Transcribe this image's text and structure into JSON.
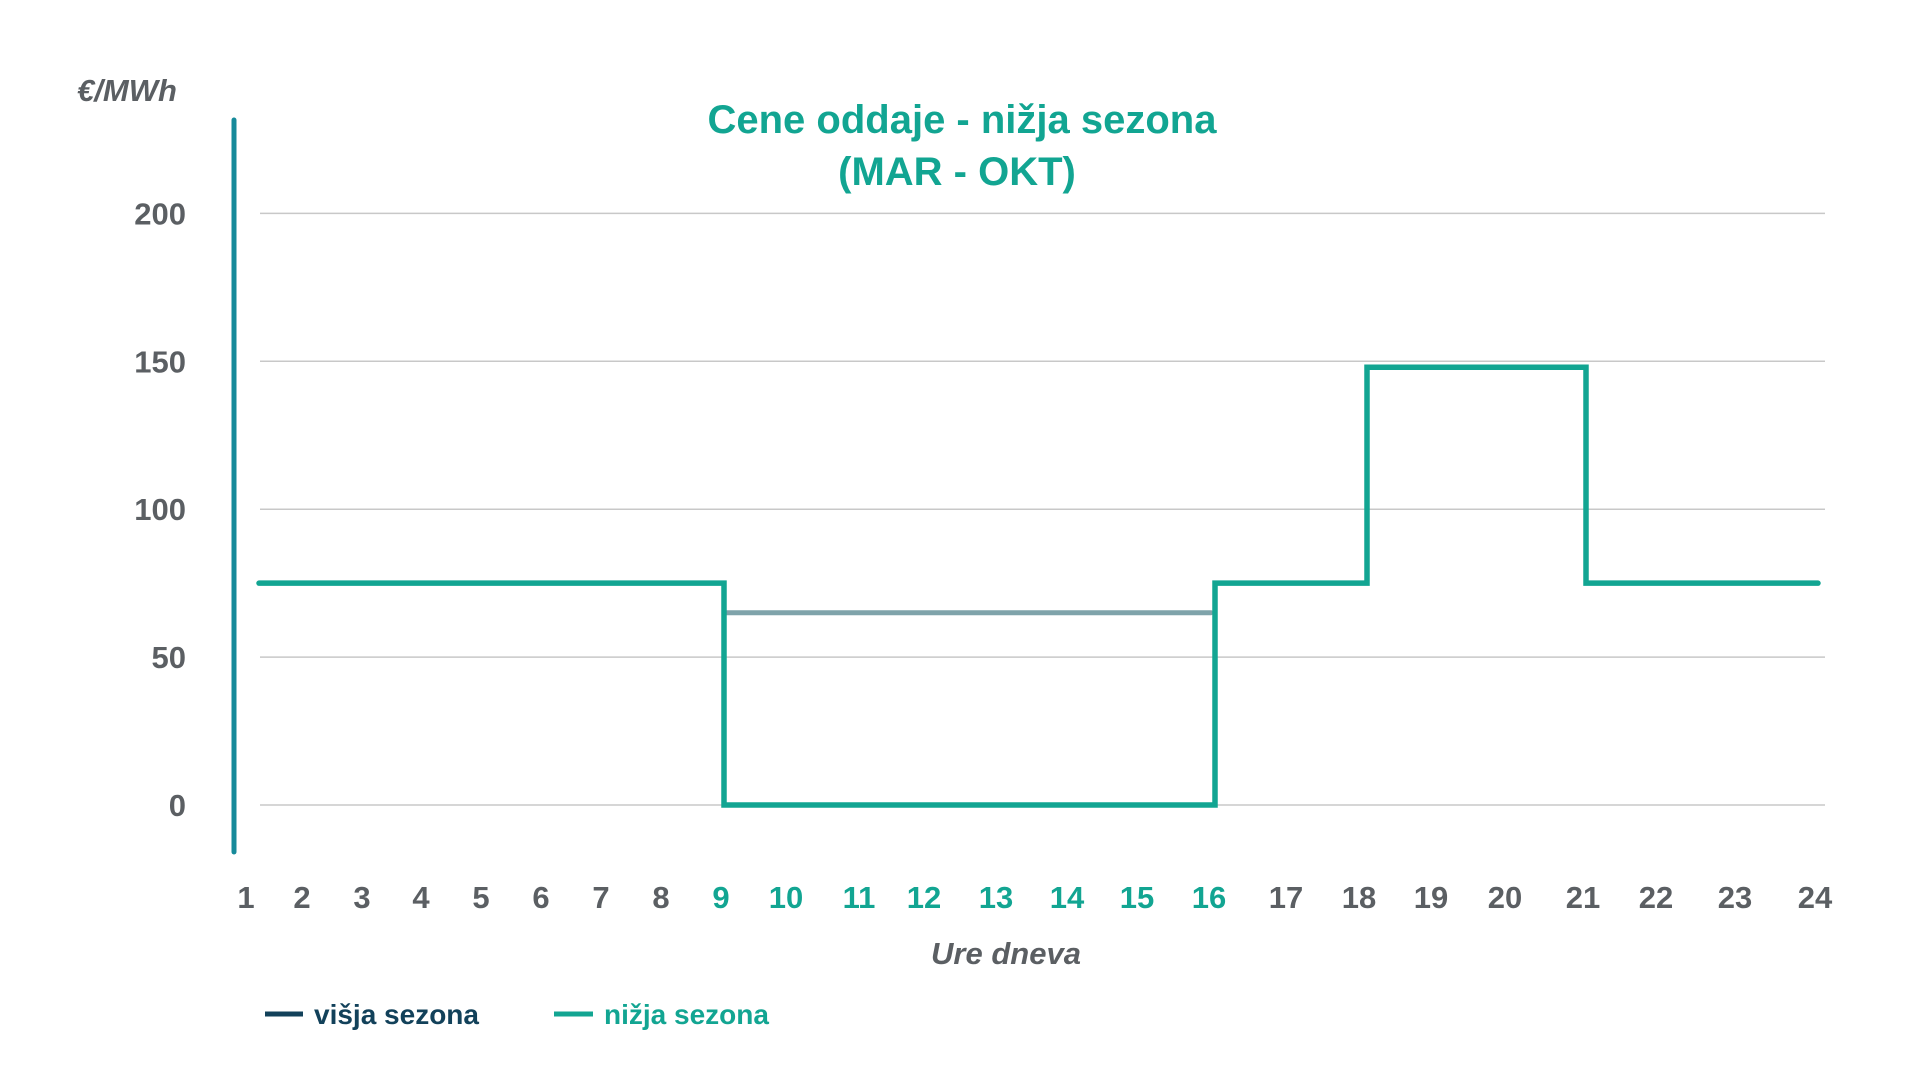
{
  "chart_data": {
    "type": "line",
    "step": true,
    "title": "Cene oddaje - nižja sezona",
    "subtitle": "(MAR - OKT)",
    "ylabel": "€/MWh",
    "xlabel": "Ure dneva",
    "ylim": [
      0,
      200
    ],
    "yticks": [
      0,
      50,
      100,
      150,
      200
    ],
    "x": [
      1,
      2,
      3,
      4,
      5,
      6,
      7,
      8,
      9,
      10,
      11,
      12,
      13,
      14,
      15,
      16,
      17,
      18,
      19,
      20,
      21,
      22,
      23,
      24
    ],
    "highlight_x": [
      9,
      10,
      11,
      12,
      13,
      14,
      15,
      16
    ],
    "grid": true,
    "legend_position": "bottom-left",
    "series": [
      {
        "name": "višja sezona",
        "color": "#7fa3aa",
        "values": [
          null,
          null,
          null,
          null,
          null,
          null,
          null,
          null,
          65,
          65,
          65,
          65,
          65,
          65,
          65,
          65,
          null,
          null,
          null,
          null,
          null,
          null,
          null,
          null
        ]
      },
      {
        "name": "nižja sezona",
        "color": "#12a592",
        "values": [
          75,
          75,
          75,
          75,
          75,
          75,
          75,
          75,
          0,
          0,
          0,
          0,
          0,
          0,
          0,
          0,
          75,
          75,
          148,
          148,
          148,
          75,
          75,
          75
        ]
      }
    ],
    "colors": {
      "title": "#12a592",
      "tick_text": "#5b5f63",
      "tick_highlight": "#12a592",
      "grid": "#c8c8c8",
      "axis_start": "#168a9a",
      "axis_end": "#12415a",
      "legend_high": "#12415a",
      "legend_low": "#12a592"
    }
  }
}
